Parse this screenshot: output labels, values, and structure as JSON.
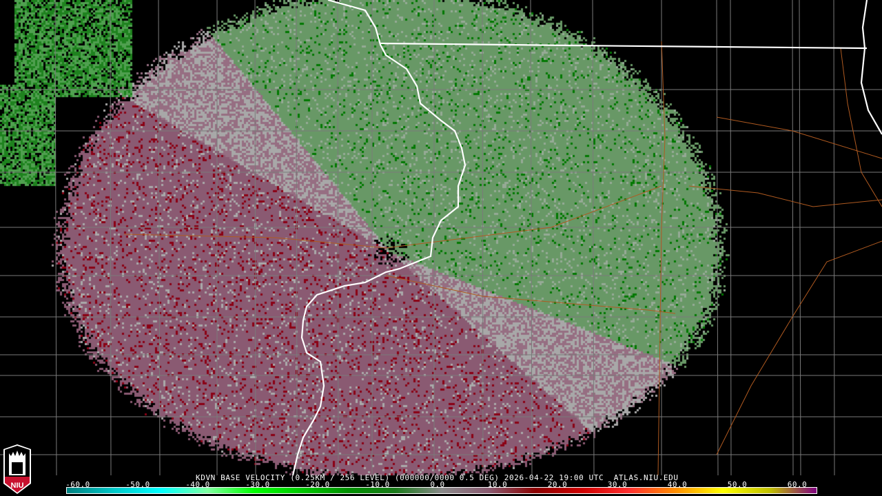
{
  "product": {
    "title": "KDVN BASE VELOCITY (0.25KM / 256 LEVEL) (000000/0000 0.5 DEG) 2026-04-22 19:00 UTC  ATLAS.NIU.EDU",
    "station": "KDVN",
    "elevation": "0.5 DEG",
    "timestamp": "2026-04-22 19:00 UTC",
    "source": "ATLAS.NIU.EDU"
  },
  "logo": {
    "text": "NIU",
    "colors": {
      "red": "#c8102e",
      "black": "#000000",
      "white": "#ffffff"
    }
  },
  "legend": {
    "ticks": [
      "-60.0",
      "-50.0",
      "-40.0",
      "-30.0",
      "-20.0",
      "-10.0",
      "0.0",
      "10.0",
      "20.0",
      "30.0",
      "40.0",
      "50.0",
      "60.0"
    ],
    "colors": [
      "#008080",
      "#00c8c8",
      "#00ffff",
      "#80ffa0",
      "#00ff00",
      "#00c800",
      "#009000",
      "#1a7a1a",
      "#8a8a8a",
      "#8a5a70",
      "#8b0000",
      "#d00000",
      "#ff3030",
      "#ff9000",
      "#ffff00",
      "#c0c000",
      "#800080"
    ]
  },
  "map": {
    "radar_colors": {
      "inbound": "#6a9a68",
      "outbound": "#8a5a72",
      "near_zero": "#a8a8a8",
      "strong_out": "#8b0000",
      "strong_in": "#007a00"
    },
    "state_border_color": "#ffffff",
    "county_line_color": "#808080",
    "road_color": "#b05a20"
  }
}
